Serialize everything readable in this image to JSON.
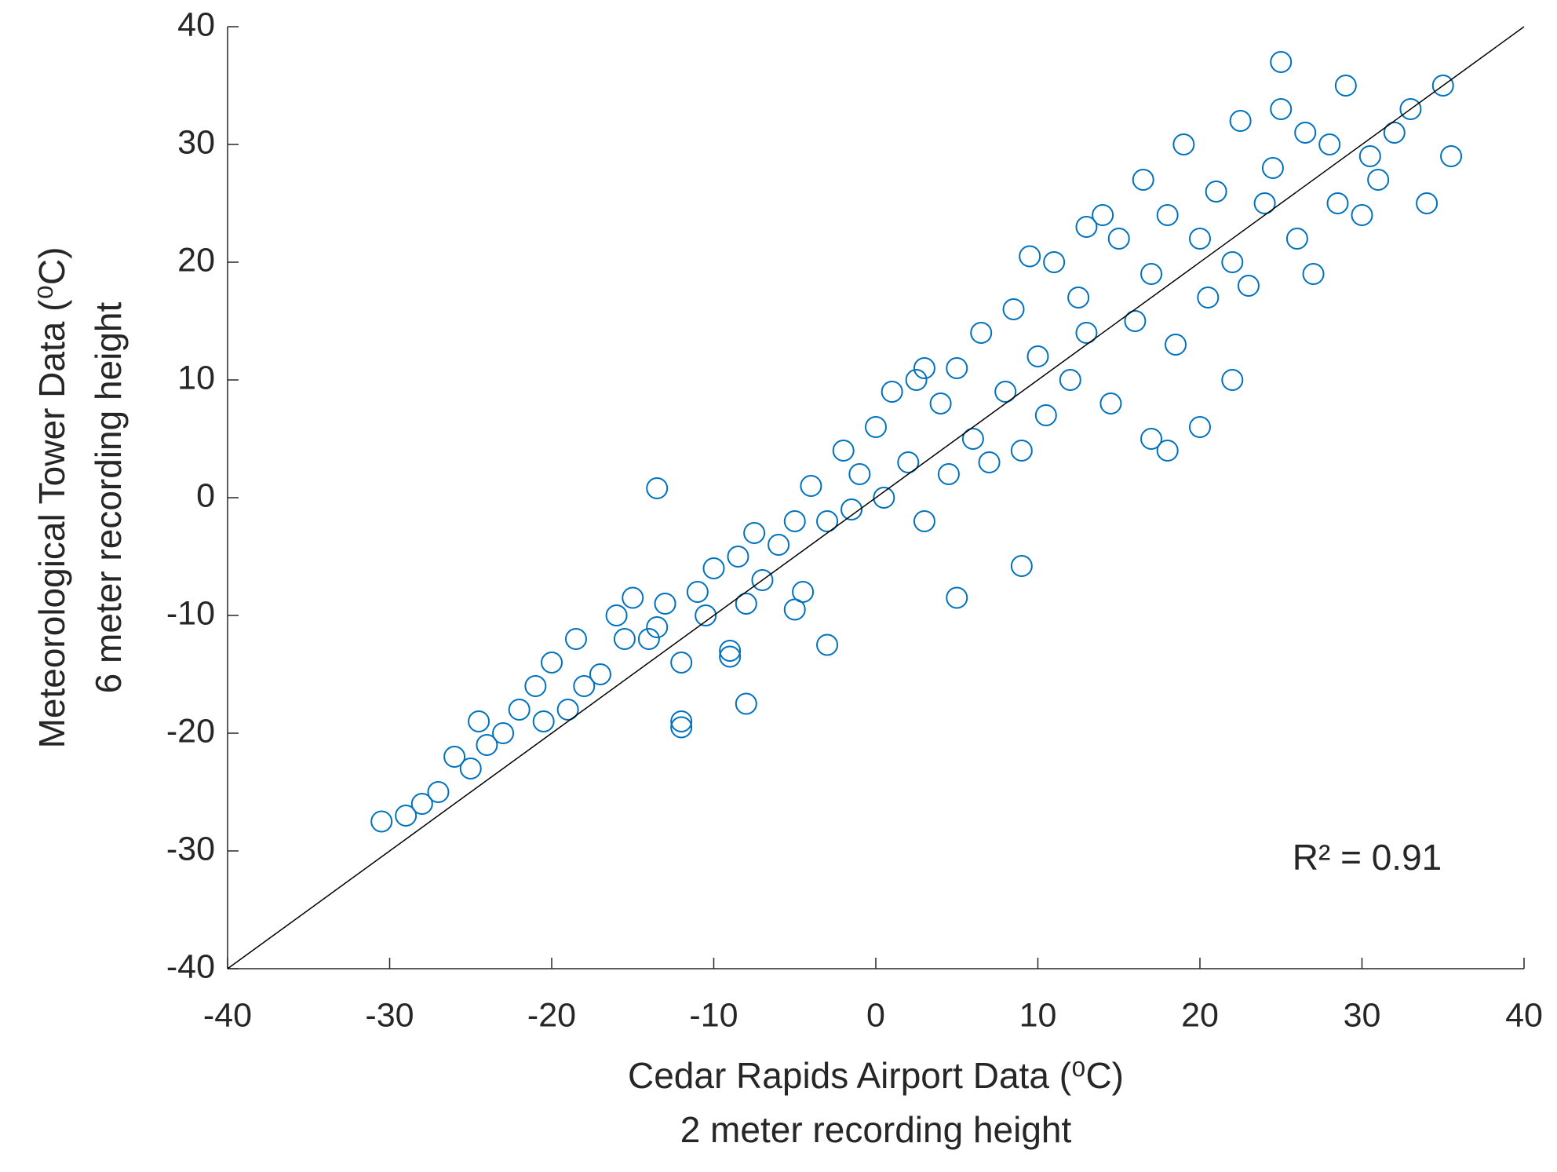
{
  "chart_data": {
    "type": "scatter",
    "x_label": [
      "Cedar Rapids Airport Data  (⁰C)",
      "2 meter recording height"
    ],
    "y_label": [
      "Meteorological Tower Data  (⁰C)",
      "6 meter recording height"
    ],
    "annotation": "R² = 0.91",
    "xlim": [
      -40,
      40
    ],
    "ylim": [
      -40,
      40
    ],
    "xticks": [
      -40,
      -30,
      -20,
      -10,
      0,
      10,
      20,
      30,
      40
    ],
    "yticks": [
      -40,
      -30,
      -20,
      -10,
      0,
      10,
      20,
      30,
      40
    ],
    "grid": false,
    "reference_line": {
      "x": [
        -40,
        40
      ],
      "y": [
        -40,
        40
      ],
      "color": "#000000"
    },
    "series": [
      {
        "color": "#0072bd",
        "x": [
          -30.5,
          -29,
          -28,
          -27,
          -26,
          -25,
          -24.5,
          -24,
          -23,
          -22,
          -21,
          -20.5,
          -20,
          -19,
          -18.5,
          -18,
          -17,
          -16,
          -15.5,
          -15,
          -14,
          -13.5,
          -13,
          -12,
          -12,
          -11,
          -10.5,
          -10,
          -9,
          -8.5,
          -8,
          -7.5,
          -7,
          -6,
          -5,
          -4.5,
          -4,
          -3,
          -2,
          -1.5,
          -1,
          0,
          0.5,
          1,
          2,
          2.5,
          3,
          4,
          4.5,
          5,
          6,
          6.5,
          7,
          8,
          8.5,
          9,
          10,
          10.5,
          11,
          12,
          12.5,
          13,
          14,
          14.5,
          15,
          16,
          16.5,
          17,
          18,
          18.5,
          19,
          20,
          20.5,
          21,
          22,
          22.5,
          23,
          24,
          24.5,
          25,
          26,
          26.5,
          27,
          28,
          28.5,
          29,
          30,
          30.5,
          31,
          32,
          33,
          34,
          35,
          35.5,
          -13.5,
          -12,
          -8,
          -5,
          5,
          9,
          18,
          20,
          22,
          25,
          -9,
          -3,
          3,
          13,
          17,
          9.5
        ],
        "values": [
          -27.5,
          -27,
          -26,
          -25,
          -22,
          -23,
          -19,
          -21,
          -20,
          -18,
          -16,
          -19,
          -14,
          -18,
          -12,
          -16,
          -15,
          -10,
          -12,
          -8.5,
          -12,
          -11,
          -9,
          -19,
          -14,
          -8,
          -10,
          -6,
          -13,
          -5,
          -9,
          -3,
          -7,
          -4,
          -2,
          -8,
          1,
          -2,
          4,
          -1,
          2,
          6,
          0,
          9,
          3,
          10,
          -2,
          8,
          2,
          11,
          5,
          14,
          3,
          9,
          16,
          4,
          12,
          7,
          20,
          10,
          17,
          14,
          24,
          8,
          22,
          15,
          27,
          19,
          24,
          13,
          30,
          22,
          17,
          26,
          20,
          32,
          18,
          25,
          28,
          33,
          22,
          31,
          19,
          30,
          25,
          35,
          24,
          29,
          27,
          31,
          33,
          25,
          35,
          29,
          0.8,
          -19.5,
          -17.5,
          -9.5,
          -8.5,
          -5.8,
          4,
          6,
          10,
          37,
          -13.5,
          -12.5,
          11,
          23,
          5,
          20.5
        ]
      }
    ]
  }
}
